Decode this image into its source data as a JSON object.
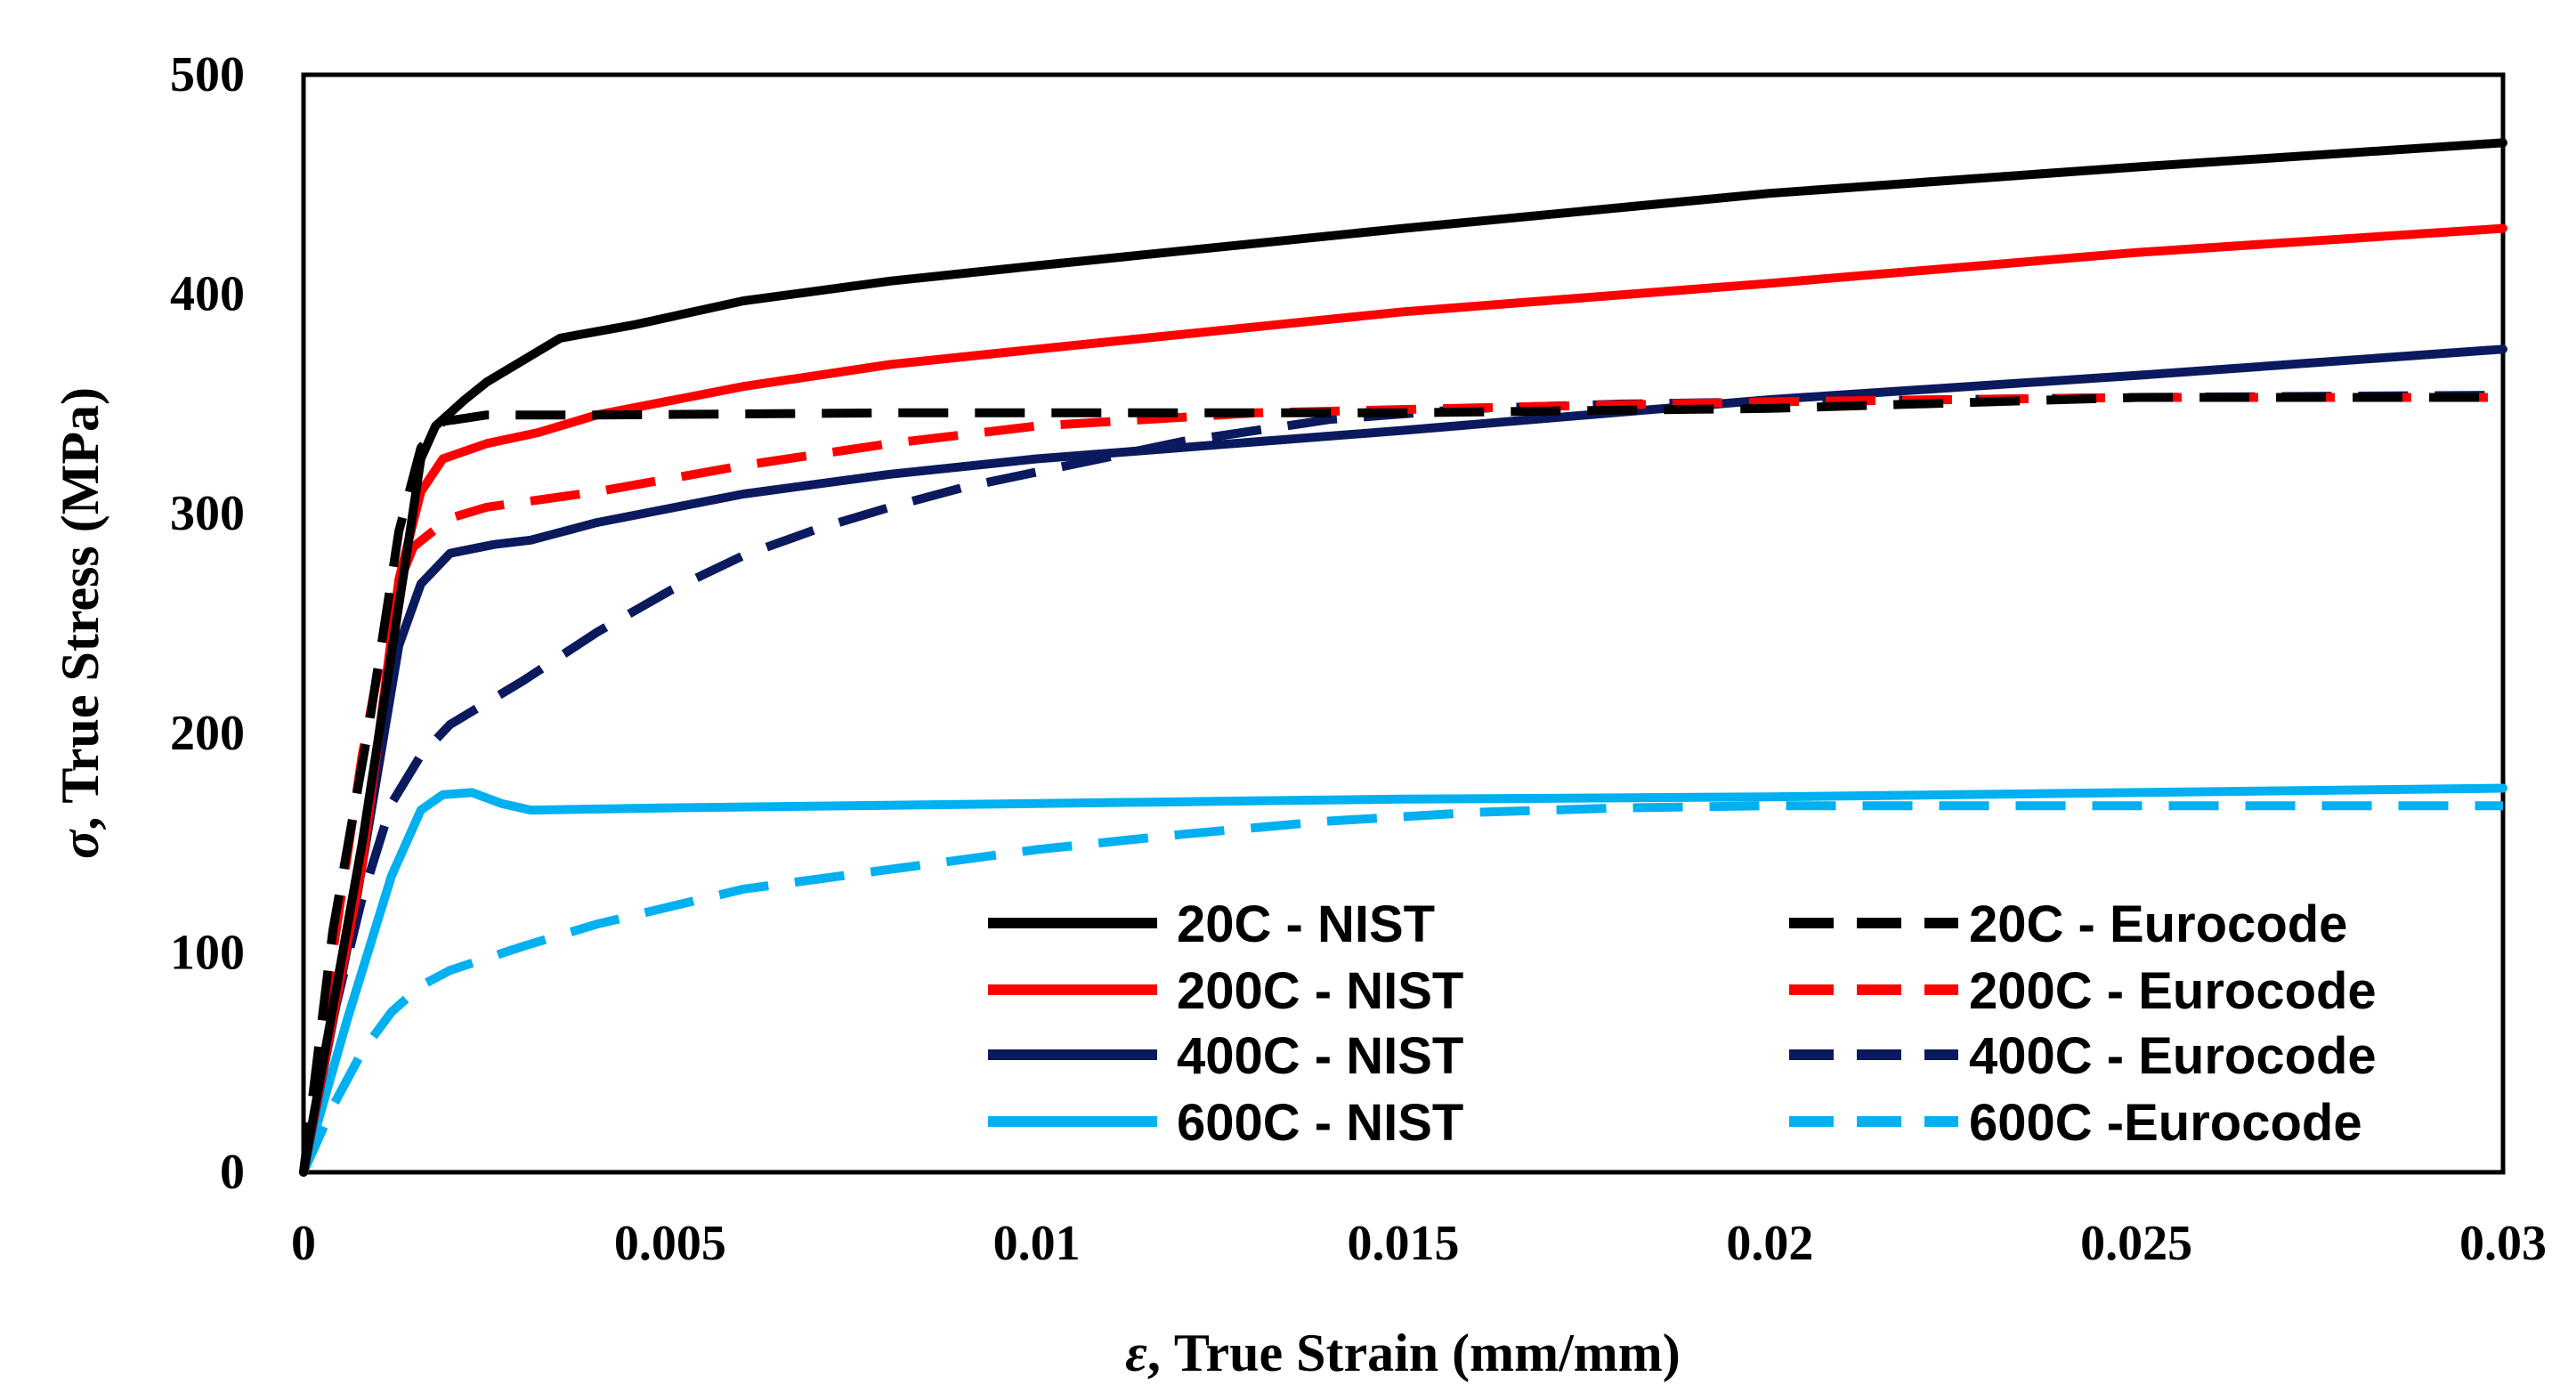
{
  "chart_data": {
    "type": "line",
    "title": "",
    "xlabel_symbol": "ε",
    "xlabel_text": ", True Strain (mm/mm)",
    "ylabel_symbol": "σ",
    "ylabel_text": ", True Stress (MPa)",
    "xlim": [
      0,
      0.03
    ],
    "ylim": [
      0,
      500
    ],
    "xticks": [
      0,
      0.005,
      0.01,
      0.015,
      0.02,
      0.025,
      0.03
    ],
    "xtick_labels": [
      "0",
      "0.005",
      "0.01",
      "0.015",
      "0.02",
      "0.025",
      "0.03"
    ],
    "yticks": [
      0,
      100,
      200,
      300,
      400,
      500
    ],
    "ytick_labels": [
      "0",
      "100",
      "200",
      "300",
      "400",
      "500"
    ],
    "grid": false,
    "legend_position": "bottom-right",
    "series": [
      {
        "name": "20C - NIST",
        "color": "#000000",
        "dash": "solid",
        "points": [
          [
            0,
            0
          ],
          [
            0.0008,
            150
          ],
          [
            0.0014,
            280
          ],
          [
            0.0016,
            325
          ],
          [
            0.0018,
            340
          ],
          [
            0.0022,
            352
          ],
          [
            0.0025,
            360
          ],
          [
            0.003,
            370
          ],
          [
            0.0035,
            380
          ],
          [
            0.0045,
            386
          ],
          [
            0.006,
            397
          ],
          [
            0.008,
            406
          ],
          [
            0.01,
            413
          ],
          [
            0.015,
            430
          ],
          [
            0.02,
            446
          ],
          [
            0.025,
            458
          ],
          [
            0.03,
            469
          ]
        ]
      },
      {
        "name": "200C - NIST",
        "color": "#ff0000",
        "dash": "solid",
        "points": [
          [
            0,
            0
          ],
          [
            0.0008,
            140
          ],
          [
            0.0013,
            270
          ],
          [
            0.0016,
            310
          ],
          [
            0.0019,
            325
          ],
          [
            0.0025,
            332
          ],
          [
            0.0032,
            337
          ],
          [
            0.004,
            345
          ],
          [
            0.006,
            358
          ],
          [
            0.008,
            368
          ],
          [
            0.01,
            375
          ],
          [
            0.015,
            392
          ],
          [
            0.02,
            405
          ],
          [
            0.025,
            419
          ],
          [
            0.03,
            430
          ]
        ]
      },
      {
        "name": "400C - NIST",
        "color": "#0b1a5e",
        "dash": "solid",
        "points": [
          [
            0,
            0
          ],
          [
            0.0007,
            120
          ],
          [
            0.0013,
            240
          ],
          [
            0.0016,
            268
          ],
          [
            0.002,
            282
          ],
          [
            0.0026,
            286
          ],
          [
            0.0031,
            288
          ],
          [
            0.004,
            296
          ],
          [
            0.006,
            309
          ],
          [
            0.008,
            318
          ],
          [
            0.01,
            325
          ],
          [
            0.015,
            338
          ],
          [
            0.02,
            352
          ],
          [
            0.025,
            363
          ],
          [
            0.03,
            375
          ]
        ]
      },
      {
        "name": "600C - NIST",
        "color": "#00b0f0",
        "dash": "solid",
        "points": [
          [
            0,
            0
          ],
          [
            0.0006,
            70
          ],
          [
            0.0012,
            135
          ],
          [
            0.0016,
            165
          ],
          [
            0.0019,
            172
          ],
          [
            0.0023,
            173
          ],
          [
            0.0027,
            168
          ],
          [
            0.0031,
            165
          ],
          [
            0.005,
            166
          ],
          [
            0.01,
            168
          ],
          [
            0.015,
            170
          ],
          [
            0.02,
            171
          ],
          [
            0.025,
            173
          ],
          [
            0.03,
            175
          ]
        ]
      },
      {
        "name": "20C - Eurocode",
        "color": "#000000",
        "dash": "dashed",
        "points": [
          [
            0,
            0
          ],
          [
            0.0004,
            110
          ],
          [
            0.0009,
            205
          ],
          [
            0.0013,
            292
          ],
          [
            0.0016,
            330
          ],
          [
            0.0019,
            342
          ],
          [
            0.0025,
            345
          ],
          [
            0.004,
            345
          ],
          [
            0.008,
            346
          ],
          [
            0.015,
            346
          ],
          [
            0.02,
            348
          ],
          [
            0.025,
            353
          ],
          [
            0.03,
            353
          ]
        ]
      },
      {
        "name": "200C - Eurocode",
        "color": "#ff0000",
        "dash": "dashed",
        "points": [
          [
            0,
            0
          ],
          [
            0.0004,
            100
          ],
          [
            0.0008,
            190
          ],
          [
            0.0012,
            260
          ],
          [
            0.0015,
            285
          ],
          [
            0.0018,
            293
          ],
          [
            0.002,
            298
          ],
          [
            0.0025,
            303
          ],
          [
            0.004,
            310
          ],
          [
            0.006,
            322
          ],
          [
            0.008,
            332
          ],
          [
            0.01,
            340
          ],
          [
            0.013,
            346
          ],
          [
            0.017,
            349
          ],
          [
            0.02,
            351
          ],
          [
            0.025,
            353
          ],
          [
            0.03,
            353
          ]
        ]
      },
      {
        "name": "400C - Eurocode",
        "color": "#0b1a5e",
        "dash": "dashed",
        "points": [
          [
            0,
            0
          ],
          [
            0.0004,
            70
          ],
          [
            0.0008,
            125
          ],
          [
            0.0012,
            168
          ],
          [
            0.0016,
            190
          ],
          [
            0.002,
            204
          ],
          [
            0.003,
            224
          ],
          [
            0.004,
            246
          ],
          [
            0.005,
            265
          ],
          [
            0.006,
            281
          ],
          [
            0.007,
            293
          ],
          [
            0.008,
            303
          ],
          [
            0.009,
            312
          ],
          [
            0.01,
            319
          ],
          [
            0.012,
            333
          ],
          [
            0.014,
            343
          ],
          [
            0.016,
            348
          ],
          [
            0.018,
            350
          ],
          [
            0.02,
            351
          ],
          [
            0.025,
            353
          ],
          [
            0.03,
            354
          ]
        ]
      },
      {
        "name": "600C -Eurocode",
        "color": "#00b0f0",
        "dash": "dashed",
        "points": [
          [
            0,
            0
          ],
          [
            0.0004,
            30
          ],
          [
            0.0008,
            55
          ],
          [
            0.0012,
            73
          ],
          [
            0.0016,
            85
          ],
          [
            0.002,
            92
          ],
          [
            0.003,
            103
          ],
          [
            0.004,
            113
          ],
          [
            0.005,
            121
          ],
          [
            0.006,
            129
          ],
          [
            0.008,
            138
          ],
          [
            0.01,
            147
          ],
          [
            0.012,
            154
          ],
          [
            0.014,
            160
          ],
          [
            0.016,
            164
          ],
          [
            0.018,
            166
          ],
          [
            0.02,
            167
          ],
          [
            0.025,
            167
          ],
          [
            0.03,
            167
          ]
        ]
      }
    ]
  }
}
